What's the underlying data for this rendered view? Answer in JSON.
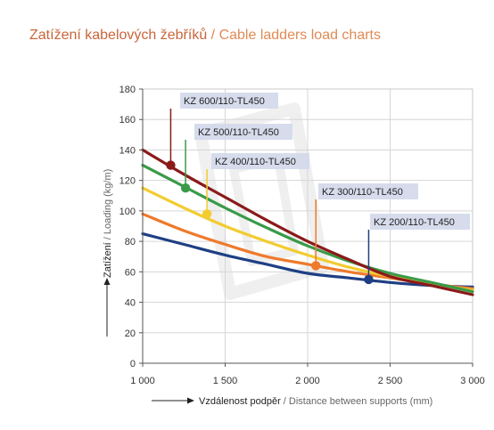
{
  "title": {
    "cz": "Zatížení kabelových žebříků",
    "sep": " / ",
    "en": "Cable ladders load charts"
  },
  "chart_data": {
    "type": "line",
    "xlabel_cz": "Vzdálenost podpěr",
    "xlabel_sep": " / ",
    "xlabel_en": "Distance between supports (mm)",
    "ylabel_cz": "Zatížení",
    "ylabel_sep": " / ",
    "ylabel_en": "Loading (kg/m)",
    "xlim": [
      1000,
      3000
    ],
    "ylim": [
      0,
      180
    ],
    "x_ticks": [
      1000,
      1500,
      2000,
      2500,
      3000
    ],
    "x_tick_labels": [
      "1 000",
      "1 500",
      "2 000",
      "2 500",
      "3 000"
    ],
    "y_ticks": [
      0,
      20,
      40,
      60,
      80,
      100,
      120,
      140,
      160,
      180
    ],
    "y_tick_labels": [
      "0",
      "20",
      "40",
      "60",
      "80",
      "100",
      "120",
      "140",
      "160",
      "180"
    ],
    "grid": true,
    "series": [
      {
        "name": "KZ 600/110-TL450",
        "color": "#8b1a1a",
        "x": [
          1000,
          1250,
          1500,
          1750,
          2000,
          2250,
          2500,
          2750,
          3000
        ],
        "y": [
          140,
          124,
          109,
          94,
          80,
          68,
          57,
          51,
          45
        ],
        "marker": [
          1170,
          130
        ]
      },
      {
        "name": "KZ 500/110-TL450",
        "color": "#3a9a48",
        "x": [
          1000,
          1250,
          1500,
          1750,
          2000,
          2250,
          2500,
          2750,
          3000
        ],
        "y": [
          130,
          116,
          102,
          89,
          77,
          67,
          59,
          53,
          47
        ],
        "marker": [
          1260,
          115
        ]
      },
      {
        "name": "KZ 400/110-TL450",
        "color": "#f2cc30",
        "x": [
          1000,
          1250,
          1500,
          1750,
          2000,
          2250,
          2500,
          2750,
          3000
        ],
        "y": [
          115,
          102,
          90,
          80,
          71,
          63,
          57,
          52,
          48
        ],
        "marker": [
          1390,
          98
        ]
      },
      {
        "name": "KZ 300/110-TL450",
        "color": "#ee7a2c",
        "x": [
          1000,
          1250,
          1500,
          1750,
          2000,
          2250,
          2500,
          2750,
          3000
        ],
        "y": [
          98,
          87,
          78,
          70,
          65,
          60,
          56,
          52,
          49
        ],
        "marker": [
          2050,
          64
        ]
      },
      {
        "name": "KZ 200/110-TL450",
        "color": "#1e3f84",
        "x": [
          1000,
          1250,
          1500,
          1750,
          2000,
          2250,
          2500,
          2750,
          3000
        ],
        "y": [
          85,
          78,
          71,
          65,
          59,
          56,
          53,
          51,
          50
        ],
        "marker": [
          2370,
          55
        ]
      }
    ]
  }
}
